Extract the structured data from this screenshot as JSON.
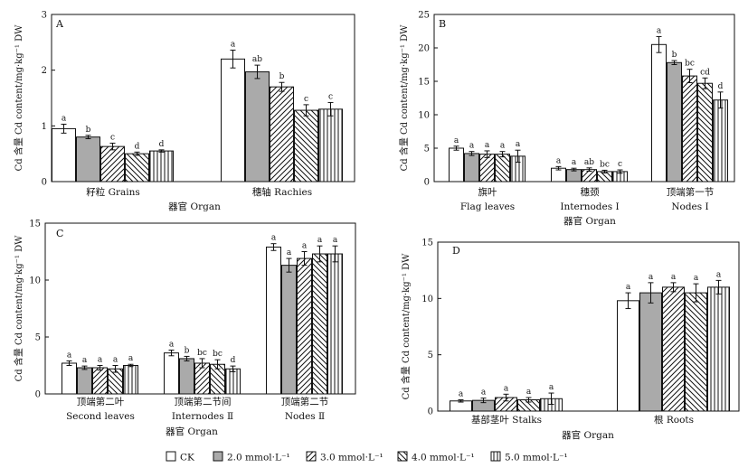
{
  "legend": [
    "CK",
    "2.0 mmol·L⁻¹",
    "3.0 mmol·L⁻¹",
    "4.0 mmol·L⁻¹",
    "5.0 mmol·L⁻¹"
  ],
  "chart_data": [
    {
      "type": "bar",
      "panel_label": "A",
      "ylabel": "Cd 含量 Cd content/mg·kg⁻¹ DW",
      "xlabel": "器官 Organ",
      "ylim": [
        0,
        3
      ],
      "yticks": [
        0,
        1,
        2,
        3
      ],
      "categories": [
        [
          "籽粒 Grains"
        ],
        [
          "穗轴 Rachies"
        ]
      ],
      "series": [
        {
          "name": "CK",
          "values": [
            0.95,
            2.2
          ],
          "errors": [
            0.08,
            0.16
          ],
          "letters": [
            "a",
            "a"
          ]
        },
        {
          "name": "2.0 mmol·L⁻¹",
          "values": [
            0.8,
            1.97
          ],
          "errors": [
            0.03,
            0.12
          ],
          "letters": [
            "b",
            "ab"
          ]
        },
        {
          "name": "3.0 mmol·L⁻¹",
          "values": [
            0.63,
            1.7
          ],
          "errors": [
            0.06,
            0.08
          ],
          "letters": [
            "c",
            "b"
          ]
        },
        {
          "name": "4.0 mmol·L⁻¹",
          "values": [
            0.5,
            1.28
          ],
          "errors": [
            0.03,
            0.1
          ],
          "letters": [
            "d",
            "c"
          ]
        },
        {
          "name": "5.0 mmol·L⁻¹",
          "values": [
            0.55,
            1.3
          ],
          "errors": [
            0.02,
            0.12
          ],
          "letters": [
            "d",
            "c"
          ]
        }
      ]
    },
    {
      "type": "bar",
      "panel_label": "B",
      "ylabel": "Cd 含量 Cd content/mg·kg⁻¹ DW",
      "xlabel": "器官 Organ",
      "ylim": [
        0,
        25
      ],
      "yticks": [
        0,
        5,
        10,
        15,
        20,
        25
      ],
      "categories": [
        [
          "旗叶",
          "Flag leaves"
        ],
        [
          "穗颈",
          "Internodes Ⅰ"
        ],
        [
          "顶端第一节",
          "Nodes Ⅰ"
        ]
      ],
      "series": [
        {
          "name": "CK",
          "values": [
            5.0,
            2.0,
            20.5
          ],
          "errors": [
            0.3,
            0.25,
            1.2
          ],
          "letters": [
            "a",
            "a",
            "a"
          ]
        },
        {
          "name": "2.0 mmol·L⁻¹",
          "values": [
            4.2,
            1.8,
            17.8
          ],
          "errors": [
            0.3,
            0.2,
            0.3
          ],
          "letters": [
            "a",
            "a",
            "b"
          ]
        },
        {
          "name": "3.0 mmol·L⁻¹",
          "values": [
            4.1,
            1.8,
            15.8
          ],
          "errors": [
            0.5,
            0.25,
            1.0
          ],
          "letters": [
            "a",
            "ab",
            "bc"
          ]
        },
        {
          "name": "4.0 mmol·L⁻¹",
          "values": [
            4.1,
            1.5,
            14.7
          ],
          "errors": [
            0.4,
            0.2,
            0.8
          ],
          "letters": [
            "a",
            "bc",
            "cd"
          ]
        },
        {
          "name": "5.0 mmol·L⁻¹",
          "values": [
            3.8,
            1.5,
            12.2
          ],
          "errors": [
            0.9,
            0.25,
            1.2
          ],
          "letters": [
            "a",
            "c",
            "d"
          ]
        }
      ]
    },
    {
      "type": "bar",
      "panel_label": "C",
      "ylabel": "Cd 含量 Cd content/mg·kg⁻¹ DW",
      "xlabel": "器官 Organ",
      "ylim": [
        0,
        15
      ],
      "yticks": [
        0,
        5,
        10,
        15
      ],
      "categories": [
        [
          "顶端第二叶",
          "Second leaves"
        ],
        [
          "顶端第二节间",
          "Internodes Ⅱ"
        ],
        [
          "顶端第二节",
          "Nodes Ⅱ"
        ]
      ],
      "series": [
        {
          "name": "CK",
          "values": [
            2.7,
            3.6,
            12.9
          ],
          "errors": [
            0.2,
            0.25,
            0.3
          ],
          "letters": [
            "a",
            "a",
            "a"
          ]
        },
        {
          "name": "2.0 mmol·L⁻¹",
          "values": [
            2.3,
            3.1,
            11.3
          ],
          "errors": [
            0.15,
            0.2,
            0.6
          ],
          "letters": [
            "a",
            "b",
            "a"
          ]
        },
        {
          "name": "3.0 mmol·L⁻¹",
          "values": [
            2.3,
            2.7,
            11.9
          ],
          "errors": [
            0.2,
            0.4,
            0.6
          ],
          "letters": [
            "a",
            "bc",
            "a"
          ]
        },
        {
          "name": "4.0 mmol·L⁻¹",
          "values": [
            2.2,
            2.6,
            12.3
          ],
          "errors": [
            0.3,
            0.4,
            0.7
          ],
          "letters": [
            "a",
            "bc",
            "a"
          ]
        },
        {
          "name": "5.0 mmol·L⁻¹",
          "values": [
            2.5,
            2.2,
            12.3
          ],
          "errors": [
            0.1,
            0.25,
            0.7
          ],
          "letters": [
            "a",
            "d",
            "a"
          ]
        }
      ]
    },
    {
      "type": "bar",
      "panel_label": "D",
      "ylabel": "Cd 含量 Cd content/mg·kg⁻¹ DW",
      "xlabel": "器官 Organ",
      "ylim": [
        0,
        15
      ],
      "yticks": [
        0,
        5,
        10,
        15
      ],
      "categories": [
        [
          "基部茎叶 Stalks"
        ],
        [
          "根 Roots"
        ]
      ],
      "series": [
        {
          "name": "CK",
          "values": [
            0.9,
            9.8
          ],
          "errors": [
            0.1,
            0.7
          ],
          "letters": [
            "a",
            "a"
          ]
        },
        {
          "name": "2.0 mmol·L⁻¹",
          "values": [
            0.95,
            10.5
          ],
          "errors": [
            0.2,
            0.9
          ],
          "letters": [
            "a",
            "a"
          ]
        },
        {
          "name": "3.0 mmol·L⁻¹",
          "values": [
            1.2,
            11.0
          ],
          "errors": [
            0.3,
            0.4
          ],
          "letters": [
            "a",
            "a"
          ]
        },
        {
          "name": "4.0 mmol·L⁻¹",
          "values": [
            1.0,
            10.5
          ],
          "errors": [
            0.2,
            0.8
          ],
          "letters": [
            "a",
            "a"
          ]
        },
        {
          "name": "5.0 mmol·L⁻¹",
          "values": [
            1.1,
            11.0
          ],
          "errors": [
            0.5,
            0.6
          ],
          "letters": [
            "a",
            "a"
          ]
        }
      ]
    }
  ]
}
